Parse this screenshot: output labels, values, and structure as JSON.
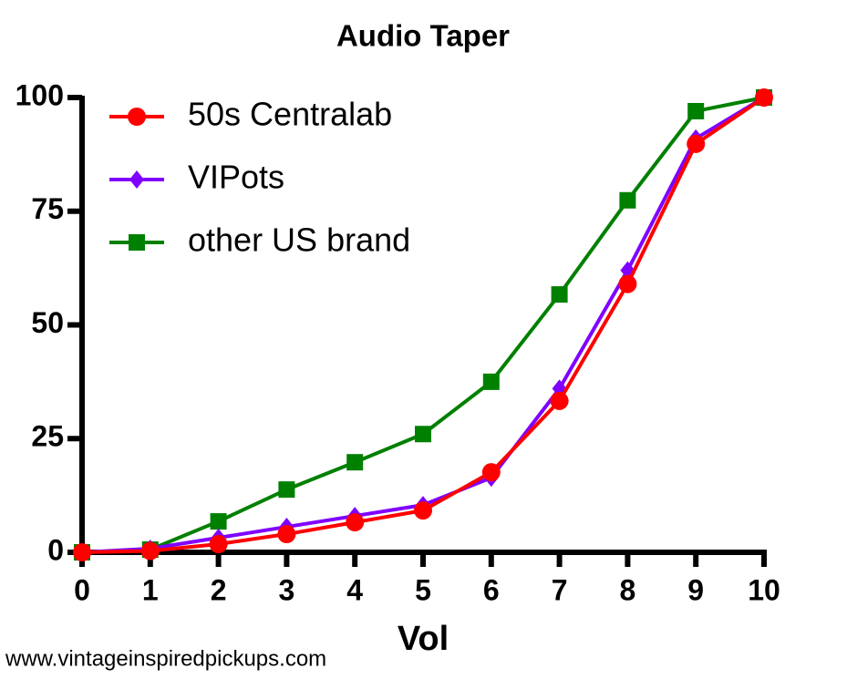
{
  "chart_data": {
    "type": "line",
    "title": "Audio Taper",
    "x_label": "Vol",
    "x": [
      0,
      1,
      2,
      3,
      4,
      5,
      6,
      7,
      8,
      9,
      10
    ],
    "series": [
      {
        "name": "50s Centralab",
        "color": "#ff0000",
        "marker": "circle",
        "values": [
          0,
          0.3,
          1.8,
          4,
          6.6,
          9.2,
          17.6,
          33.3,
          59,
          89.8,
          100
        ]
      },
      {
        "name": "VIPots",
        "color": "#7f00ff",
        "marker": "diamond",
        "values": [
          0,
          0.8,
          3.2,
          5.6,
          8,
          10.4,
          16.4,
          36,
          62,
          91,
          100
        ]
      },
      {
        "name": "other US brand",
        "color": "#008000",
        "marker": "square",
        "values": [
          0,
          0.6,
          6.8,
          13.8,
          19.8,
          26,
          37.5,
          56.7,
          77.4,
          97,
          100
        ]
      }
    ],
    "xlim": [
      0,
      10
    ],
    "xticks": [
      0,
      1,
      2,
      3,
      4,
      5,
      6,
      7,
      8,
      9,
      10
    ],
    "ylim": [
      0,
      100
    ],
    "yticks": [
      0,
      25,
      50,
      75,
      100
    ],
    "legend": "top-left",
    "grid": false,
    "watermark": "www.vintageinspiredpickups.com"
  }
}
